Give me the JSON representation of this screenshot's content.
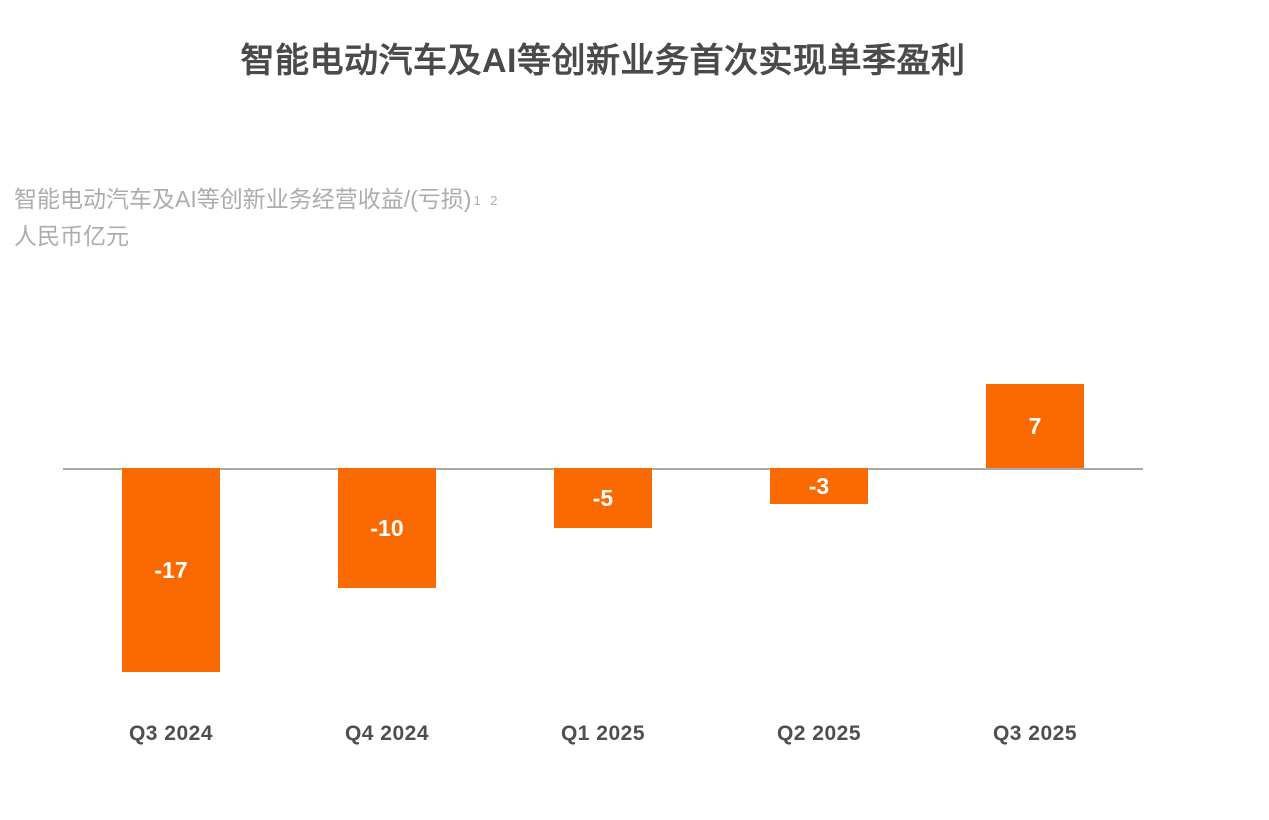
{
  "header": {
    "title": "智能电动汽车及AI等创新业务首次实现单季盈利"
  },
  "subtitle": {
    "line1": "智能电动汽车及AI等创新业务经营收益/(亏损)",
    "footnote_markers": "1 2",
    "line2": "人民币亿元"
  },
  "chart_data": {
    "type": "bar",
    "title": "智能电动汽车及AI等创新业务首次实现单季盈利",
    "ylabel": "智能电动汽车及AI等创新业务经营收益/(亏损)",
    "unit": "人民币亿元",
    "categories": [
      "Q3 2024",
      "Q4 2024",
      "Q1 2025",
      "Q2 2025",
      "Q3 2025"
    ],
    "values": [
      -17,
      -10,
      -5,
      -3,
      7
    ],
    "bar_labels": [
      "-17",
      "-10",
      "-5",
      "-3",
      "7"
    ],
    "ylim": [
      -20,
      10
    ],
    "grid": false,
    "legend": null,
    "colors": {
      "bar": "#fb6a00",
      "bar_label_text": "#ffffff",
      "zero_line": "#a9a9a9",
      "title_text": "#4a4a4a",
      "subtitle_text": "#acacac",
      "x_label_text": "#4f4f4f",
      "background": "#ffffff"
    }
  }
}
